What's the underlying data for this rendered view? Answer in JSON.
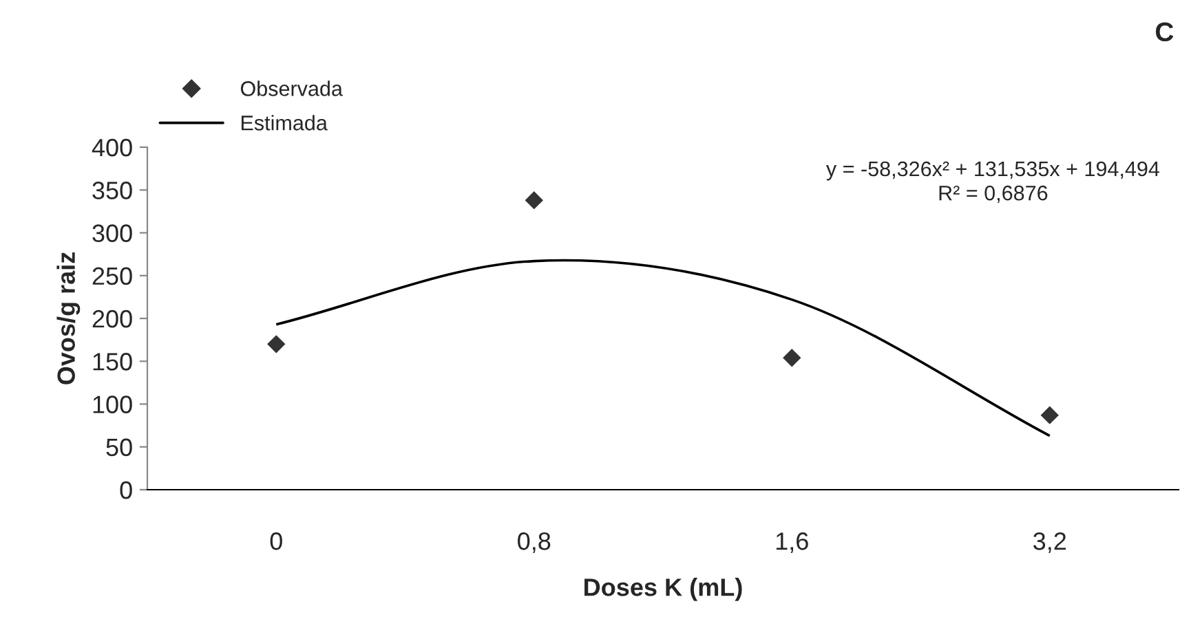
{
  "chart_data": {
    "type": "scatter",
    "xlabel": "Doses K (mL)",
    "ylabel": "Ovos/g raiz",
    "categories": [
      "0",
      "0,8",
      "1,6",
      "3,2"
    ],
    "ylim": [
      0,
      400
    ],
    "yticks": [
      0,
      50,
      100,
      150,
      200,
      250,
      300,
      350,
      400
    ],
    "series": [
      {
        "name": "Observada",
        "color": "#333333",
        "marker": "diamond",
        "values": [
          170,
          338,
          154,
          87
        ]
      },
      {
        "name": "Estimada",
        "type": "line",
        "color": "#000000",
        "line_style": "solid",
        "values": [
          193,
          267,
          222,
          63
        ]
      }
    ],
    "annotations": [
      "y = -58,326x² + 131,535x + 194,494\nR² = 0,6876",
      "C"
    ],
    "legend": "top left",
    "grid": false
  }
}
